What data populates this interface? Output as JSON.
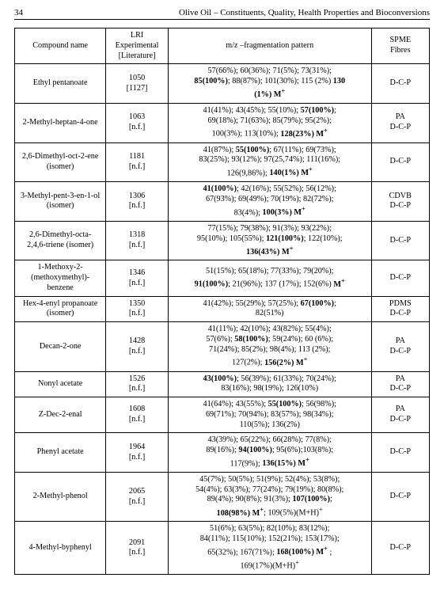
{
  "header": {
    "page_number": "34",
    "running_title": "Olive Oil – Constituents, Quality, Health Properties and Bioconversions"
  },
  "table": {
    "columns": [
      "Compound name",
      "LRI\nExperimental\n[Literature]",
      "m/z –fragmentation pattern",
      "SPME\nFibres"
    ],
    "rows": [
      {
        "name": "Ethyl pentanoate",
        "lri": "1050\n[1127]",
        "mz": "57(66%); 60(36%); 71(5%); 73(31%);<br><b>85(100%)</b>; 88(87%); 101(30%); 115 (2%) <b>130<br>(1%) M<sup>+</sup></b>",
        "fibres": "D-C-P"
      },
      {
        "name": "2-Methyl-heptan-4-one",
        "lri": "1063\n[n.f.]",
        "mz": "41(41%); 43(45%); 55(10%); <b>57(100%)</b>;<br>69(18%); 71(63%); 85(79%); 95(2%);<br>100(3%); 113(10%); <b>128(23%) M<sup>+</sup></b>",
        "fibres": "PA\nD-C-P"
      },
      {
        "name": "2,6-Dimethyl-oct-2-ene\n(isomer)",
        "lri": "1181\n[n.f.]",
        "mz": "41(87%); <b>55(100%)</b>; 67(11%); 69(73%);<br>83(25%); 93(12%); 97(25,74%); 111(16%);<br>126(9,86%); <b>140(1%) M<sup>+</sup></b>",
        "fibres": "D-C-P"
      },
      {
        "name": "3-Methyl-pent-3-en-1-ol\n(isomer)",
        "lri": "1306\n[n.f.]",
        "mz": "<b>41(100%)</b>; 42(16%);  55(52%);  56(12%);<br>67(93%);  69(49%); 70(19%);  82(72%);<br>83(4%); <b>100(3%) M<sup>+</sup></b>",
        "fibres": "CDVB\nD-C-P"
      },
      {
        "name": "2,6-Dimethyl-octa-\n2,4,6-triene (isomer)",
        "lri": "1318\n[n.f.]",
        "mz": "77(15%); 79(38%); 91(3%); 93(22%);<br>95(10%); 105(55%); <b>121(100%)</b>; 122(10%);<br><b>136(43%) M<sup>+</sup></b>",
        "fibres": "D-C-P"
      },
      {
        "name": "1-Methoxy-2-\n(methoxymethyl)-\nbenzene",
        "lri": "1346\n[n.f.]",
        "mz": "51(15%);   65(18%); 77(33%);   79(20%);<br><b>91(100%)</b>; 21(96%); 137 (17%); 152(6%) <b>M<sup>+</sup></b>",
        "fibres": "D-C-P"
      },
      {
        "name": "Hex-4-enyl propanoate\n(isomer)",
        "lri": "1350\n[n.f.]",
        "mz": "41(42%);    55(29%); 57(25%);   <b>67(100%)</b>;<br>82(51%)",
        "fibres": "PDMS\nD-C-P"
      },
      {
        "name": "Decan-2-one",
        "lri": "1428\n[n.f.]",
        "mz": "41(11%); 42(10%); 43(82%); 55(4%);<br>57(6%); <b>58(100%)</b>; 59(24%); 60 (6%);<br>71(24%); 85(2%); 98(4%); 113 (2%);<br>127(2%); <b>156(2%) M<sup>+</sup></b>",
        "fibres": "PA\nD-C-P"
      },
      {
        "name": "Nonyl acetate",
        "lri": "1526\n[n.f.]",
        "mz": "<b>43(100%)</b>; 56(39%); 61(33%); 70(24%);<br>83(16%); 98(19%); 126(10%)",
        "fibres": "PA\nD-C-P"
      },
      {
        "name": "Z-Dec-2-enal",
        "lri": "1608\n[n.f.]",
        "mz": "41(64%); 43(55%); <b>55(100%)</b>; 56(98%);<br>69(71%); 70(94%); 83(57%); 98(34%);<br>110(5%); 136(2%)",
        "fibres": "PA\nD-C-P"
      },
      {
        "name": "Phenyl acetate",
        "lri": "1964\n[n.f.]",
        "mz": "43(39%); 65(22%); 66(28%); 77(8%);<br>89(16%); <b>94(100%)</b>; 95(6%);103(8%);<br>117(9%); <b>136(15%) M<sup>+</sup></b>",
        "fibres": "D-C-P"
      },
      {
        "name": "2-Methyl-phenol",
        "lri": "2065\n[n.f.]",
        "mz": "45(7%); 50(5%); 51(9%); 52(4%); 53(8%);<br>54(4%); 63(3%); 77(24%); 79(19%); 80(8%);<br>89(4%);  90(8%); 91(3%); <b>107(100%)</b>;<br><b>108(98%) M<sup>+</sup></b>; 109(5%)(M+H)<sup>+</sup>",
        "fibres": "D-C-P"
      },
      {
        "name": "4-Methyl-byphenyl",
        "lri": "2091\n[n.f.]",
        "mz": "51(6%); 63(5%); 82(10%); 83(12%);<br>84(11%); 115(10%); 152(21%); 153(17%);<br>65(32%); 167(71%); <b>168(100%) M<sup>+</sup></b> ;<br>169(17%)(M+H)<sup>+</sup>",
        "fibres": "D-C-P"
      }
    ]
  }
}
